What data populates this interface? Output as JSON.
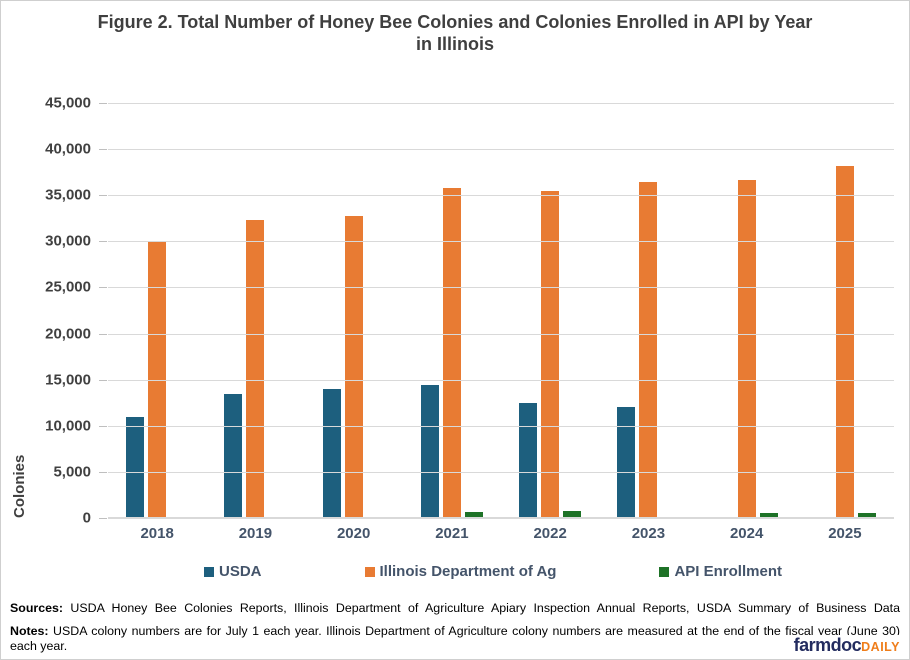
{
  "title": "Figure 2. Total Number of Honey Bee Colonies and Colonies Enrolled in API by Year in Illinois",
  "chart_data": {
    "type": "bar",
    "categories": [
      "2018",
      "2019",
      "2020",
      "2021",
      "2022",
      "2023",
      "2024",
      "2025"
    ],
    "series": [
      {
        "name": "USDA",
        "color": "#1D5F7E",
        "values": [
          11000,
          13400,
          14000,
          14400,
          12500,
          12000,
          null,
          null
        ]
      },
      {
        "name": "Illinois Department of Ag",
        "color": "#E87B33",
        "values": [
          30000,
          32300,
          32800,
          35800,
          35500,
          36400,
          36700,
          38200
        ]
      },
      {
        "name": "API Enrollment",
        "color": "#1E7227",
        "values": [
          null,
          null,
          null,
          700,
          800,
          150,
          550,
          500
        ]
      }
    ],
    "title": "Figure 2. Total Number of Honey Bee Colonies and Colonies Enrolled in API by Year in Illinois",
    "xlabel": "",
    "ylabel": "Colonies",
    "ylim": [
      0,
      45000
    ],
    "ytick_step": 5000,
    "grid": true,
    "legend_position": "bottom"
  },
  "footer": {
    "sources_label": "Sources:",
    "sources_text": " USDA Honey Bee Colonies Reports, Illinois Department of Agriculture Apiary Inspection Annual Reports, USDA Summary of Business Data",
    "notes_label": "Notes:",
    "notes_text": " USDA colony numbers are for July 1 each year. Illinois Department of Agriculture colony numbers are measured at the end of the fiscal year (June 30) each year."
  },
  "logo": {
    "farmdoc": "farmdoc",
    "daily": "DAILY"
  },
  "colors": {
    "title_text": "#3f3f3f",
    "axis_tick_text": "#404040",
    "category_text": "#44546a",
    "gridline": "#d9d9d9",
    "tick_mark": "#bfbfbf",
    "logo_navy": "#232c5f",
    "logo_orange": "#ef7d1a"
  }
}
